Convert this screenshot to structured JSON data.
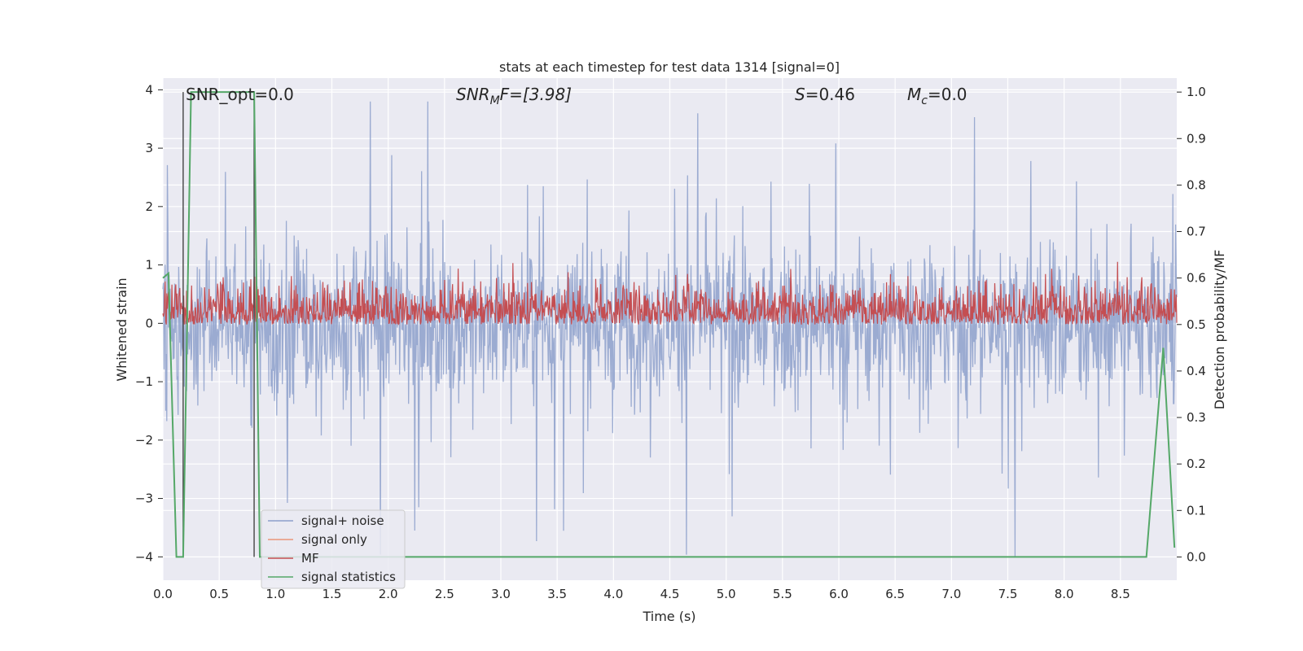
{
  "chart_data": {
    "type": "line",
    "title": "stats at each timestep for test data 1314 [signal=0]",
    "xlabel": "Time (s)",
    "ylabel_left": "Whitened strain",
    "ylabel_right": "Detection probability/MF",
    "xlim": [
      0.0,
      9.0
    ],
    "ylim_left": [
      -4.4,
      4.2
    ],
    "ylim_right": [
      -0.05,
      1.03
    ],
    "x_ticks": [
      "0.0",
      "0.5",
      "1.0",
      "1.5",
      "2.0",
      "2.5",
      "3.0",
      "3.5",
      "4.0",
      "4.5",
      "5.0",
      "5.5",
      "6.0",
      "6.5",
      "7.0",
      "7.5",
      "8.0",
      "8.5"
    ],
    "y_left_ticks": [
      "4",
      "3",
      "2",
      "1",
      "0",
      "−1",
      "−2",
      "−3",
      "−4"
    ],
    "y_right_ticks": [
      "1.0",
      "0.9",
      "0.8",
      "0.7",
      "0.6",
      "0.5",
      "0.4",
      "0.3",
      "0.2",
      "0.1",
      "0.0"
    ],
    "grid": true,
    "legend_position": "lower-left",
    "annotations": {
      "snr_opt": "SNR_opt=0.0",
      "snr_mf_main": "SNR",
      "snr_mf_sub": "M",
      "snr_mf_rest": "F=[3.98]",
      "s_main": "S",
      "s_rest": "=0.46",
      "mc_main": "M",
      "mc_sub": "c",
      "mc_rest": "=0.0"
    },
    "vertical_lines_x": [
      0.18,
      0.81
    ],
    "series": [
      {
        "name": "signal+ noise",
        "color": "#8da0cb",
        "description_values": "noise, amplitude approx within -4 to 3.8"
      },
      {
        "name": "signal only",
        "color": "#e9967a",
        "values": []
      },
      {
        "name": "MF",
        "color": "#c44e52",
        "range": [
          0.5,
          0.63
        ]
      },
      {
        "name": "signal statistics",
        "color": "#55a868",
        "x": [
          0.0,
          0.05,
          0.12,
          0.18,
          0.25,
          0.81,
          0.86,
          8.73,
          8.88,
          8.98
        ],
        "y": [
          0.6,
          0.61,
          0.0,
          0.0,
          1.0,
          1.0,
          0.0,
          0.0,
          0.45,
          0.02
        ]
      }
    ]
  }
}
